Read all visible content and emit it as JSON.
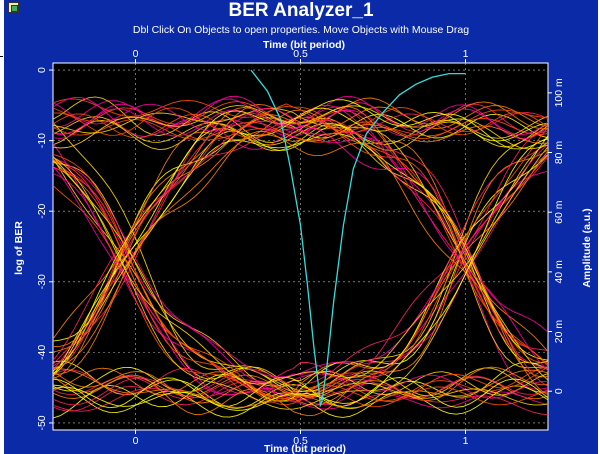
{
  "window": {
    "title": "BER Analyzer_1",
    "subtitle": "Dbl Click On Objects to open properties.  Move Objects with Mouse Drag"
  },
  "chart_data": {
    "type": "line",
    "top_axis": {
      "label": "Time (bit period)",
      "ticks": [
        {
          "value": 0,
          "label": "0"
        },
        {
          "value": 0.5,
          "label": "0.5"
        },
        {
          "value": 1,
          "label": "1"
        }
      ],
      "range": [
        -0.25,
        1.25
      ]
    },
    "bottom_axis": {
      "label": "Time (bit period)",
      "ticks": [
        {
          "value": 0,
          "label": "0"
        },
        {
          "value": 0.5,
          "label": "0.5"
        },
        {
          "value": 1,
          "label": "1"
        }
      ],
      "range": [
        -0.25,
        1.25
      ]
    },
    "left_axis": {
      "label": "log of BER",
      "ticks": [
        {
          "value": 0,
          "label": "0"
        },
        {
          "value": -10,
          "label": "-10"
        },
        {
          "value": -20,
          "label": "-20"
        },
        {
          "value": -30,
          "label": "-30"
        },
        {
          "value": -40,
          "label": "-40"
        },
        {
          "value": -50,
          "label": "-50"
        }
      ],
      "range": [
        -51,
        1
      ]
    },
    "right_axis": {
      "label": "Amplitude (a.u.)",
      "ticks": [
        {
          "value": 0,
          "label": "0"
        },
        {
          "value": 20,
          "label": "20 m"
        },
        {
          "value": 40,
          "label": "40 m"
        },
        {
          "value": 60,
          "label": "60 m"
        },
        {
          "value": 80,
          "label": "80 m"
        },
        {
          "value": 100,
          "label": "100 m"
        }
      ],
      "range": [
        -13,
        110
      ]
    },
    "ber_curve": {
      "color": "#33dddd",
      "x": [
        0.35,
        0.4,
        0.44,
        0.47,
        0.5,
        0.52,
        0.54,
        0.555,
        0.56,
        0.565,
        0.58,
        0.6,
        0.63,
        0.66,
        0.7,
        0.75,
        0.8,
        0.85,
        0.9,
        0.95,
        1.0
      ],
      "y": [
        0,
        -3,
        -7,
        -14,
        -22,
        -30,
        -39,
        -45,
        -47.5,
        -47,
        -42,
        -33,
        -22,
        -14,
        -9,
        -6,
        -3.5,
        -2,
        -1,
        -0.5,
        -0.5
      ]
    },
    "eye_diagram": {
      "trace_colors": [
        "#ffff00",
        "#ffd700",
        "#ff8000",
        "#ff5000",
        "#ff2060",
        "#ff00a0"
      ],
      "bit_period_range": [
        -0.25,
        1.25
      ],
      "levels": {
        "high": 90,
        "low": 0
      },
      "crossings": [
        -0.03,
        1.0
      ]
    },
    "grid": "dashed white",
    "background": "#000000"
  }
}
